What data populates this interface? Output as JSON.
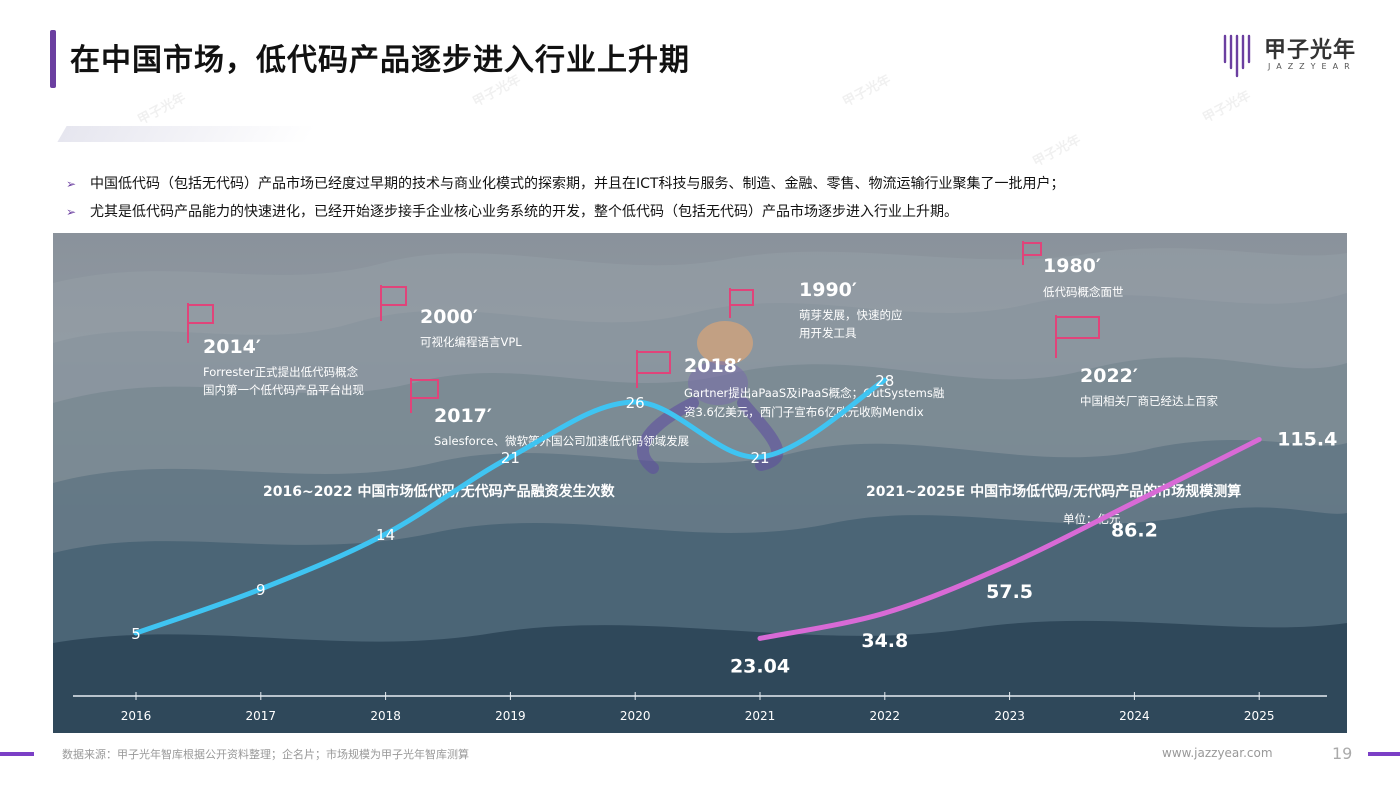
{
  "header": {
    "title": "在中国市场，低代码产品逐步进入行业上升期",
    "logo_cn": "甲子光年",
    "logo_en": "JAZZYEAR",
    "accent_color": "#6b3fa0"
  },
  "bullets": [
    "中国低代码（包括无代码）产品市场已经度过早期的技术与商业化模式的探索期，并且在ICT科技与服务、制造、金融、零售、物流运输行业聚集了一批用户；",
    "尤其是低代码产品能力的快速进化，已经开始逐步接手企业核心业务系统的开发，整个低代码（包括无代码）产品市场逐步进入行业上升期。"
  ],
  "milestones": [
    {
      "year": "1980′",
      "lines": [
        "低代码概念面世"
      ]
    },
    {
      "year": "1990′",
      "lines": [
        "萌芽发展，快速的应",
        "用开发工具"
      ]
    },
    {
      "year": "2000′",
      "lines": [
        "可视化编程语言VPL"
      ]
    },
    {
      "year": "2014′",
      "lines": [
        "Forrester正式提出低代码概念",
        "国内第一个低代码产品平台出现"
      ]
    },
    {
      "year": "2017′",
      "lines": [
        "Salesforce、微软等外国公司加速低代码领域发展"
      ]
    },
    {
      "year": "2018′",
      "lines": [
        "Gartner提出aPaaS及iPaaS概念；OutSystems融",
        "资3.6亿美元，西门子宣布6亿欧元收购Mendix"
      ]
    },
    {
      "year": "2022′",
      "lines": [
        "中国相关厂商已经达上百家"
      ]
    }
  ],
  "chart_data": [
    {
      "type": "line",
      "title": "2016~2022 中国市场低代码/无代码产品融资发生次数",
      "color": "#3fc4f2",
      "x": [
        "2016",
        "2017",
        "2018",
        "2019",
        "2020",
        "2021",
        "2022"
      ],
      "values": [
        5,
        9,
        14,
        21,
        26,
        21,
        28
      ],
      "value_labels": [
        "5",
        "9",
        "14",
        "21",
        "26",
        "21",
        "28"
      ]
    },
    {
      "type": "line",
      "title": "2021~2025E 中国市场低代码/无代码产品的市场规模测算",
      "unit_label": "单位：亿元",
      "color": "#d86ad6",
      "x": [
        "2021",
        "2022",
        "2023",
        "2024",
        "2025"
      ],
      "values": [
        23.04,
        34.8,
        57.5,
        86.2,
        115.4
      ],
      "value_labels": [
        "23.04",
        "34.8",
        "57.5",
        "86.2",
        "115.4"
      ]
    }
  ],
  "x_axis": {
    "categories": [
      "2016",
      "2017",
      "2018",
      "2019",
      "2020",
      "2021",
      "2022",
      "2023",
      "2024",
      "2025"
    ]
  },
  "footer": {
    "source": "数据来源：甲子光年智库根据公开资料整理；企名片；市场规模为甲子光年智库测算",
    "url": "www.jazzyear.com",
    "page": "19"
  }
}
